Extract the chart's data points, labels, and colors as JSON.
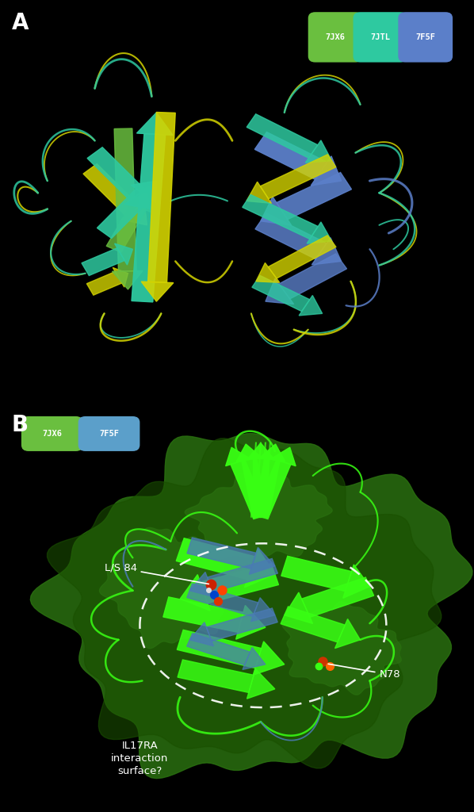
{
  "background_color": "#000000",
  "panel_A_label": "A",
  "panel_B_label": "B",
  "panel_A_legend": [
    {
      "label": "7JX6",
      "color": "#6abf3f"
    },
    {
      "label": "7JTL",
      "color": "#2ec9a0"
    },
    {
      "label": "7F5F",
      "color": "#5b7fc9"
    }
  ],
  "panel_B_legend": [
    {
      "label": "7JX6",
      "color": "#6abf3f"
    },
    {
      "label": "7F5F",
      "color": "#5b9fca"
    }
  ],
  "annotation_L84": "L/S 84",
  "annotation_N78": "N78",
  "annotation_IL17_line1": "IL17RA",
  "annotation_IL17_line2": "interaction",
  "annotation_IL17_line3": "surface?",
  "figsize": [
    5.98,
    10.24
  ],
  "dpi": 100,
  "panel_A_yellow": "#d4d400",
  "panel_A_teal": "#2ec9a0",
  "panel_A_green": "#6abf3f",
  "panel_A_blue": "#5b7fc9",
  "panel_B_limegreen": "#39ff14",
  "panel_B_green": "#33cc00",
  "panel_B_blue": "#4a7ab5",
  "panel_B_surface_dark": "#1a5000",
  "panel_B_surface_mid": "#2a7010"
}
